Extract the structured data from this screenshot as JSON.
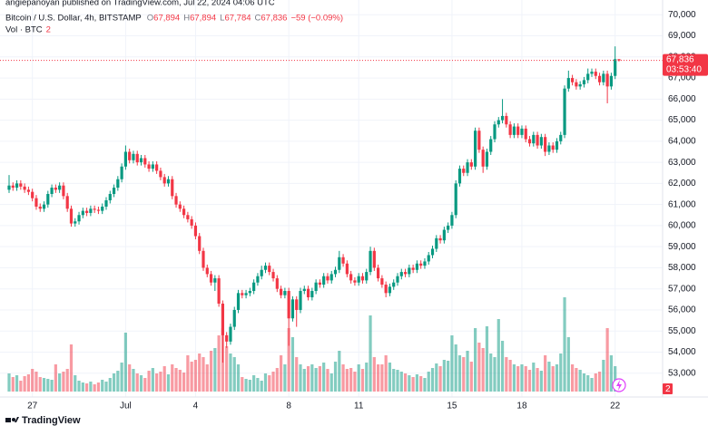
{
  "published": "angiepanoyan published on TradingView.com, Jul 22, 2024 04:06 UTC",
  "logo": "TradingView",
  "legend": {
    "symbol": "Bitcoin / U.S. Dollar, 4h, BITSTAMP",
    "ohlc": [
      {
        "key": "O",
        "value": "67,894"
      },
      {
        "key": "H",
        "value": "67,894"
      },
      {
        "key": "L",
        "value": "67,784"
      },
      {
        "key": "C",
        "value": "67,836"
      }
    ],
    "change": "−59 (−0.09%)",
    "volume_title": "Vol · BTC",
    "volume_value": "2"
  },
  "chart_data": {
    "type": "candlestick",
    "up_color": "#089981",
    "down_color": "#f23645",
    "ylim": [
      52000,
      70700
    ],
    "yticks": [
      {
        "value": 53000,
        "label": "53,000"
      },
      {
        "value": 54000,
        "label": "54,000"
      },
      {
        "value": 55000,
        "label": "55,000"
      },
      {
        "value": 56000,
        "label": "56,000"
      },
      {
        "value": 57000,
        "label": "57,000"
      },
      {
        "value": 58000,
        "label": "58,000"
      },
      {
        "value": 59000,
        "label": "59,000"
      },
      {
        "value": 60000,
        "label": "60,000"
      },
      {
        "value": 61000,
        "label": "61,000"
      },
      {
        "value": 62000,
        "label": "62,000"
      },
      {
        "value": 63000,
        "label": "63,000"
      },
      {
        "value": 64000,
        "label": "64,000"
      },
      {
        "value": 65000,
        "label": "65,000"
      },
      {
        "value": 66000,
        "label": "66,000"
      },
      {
        "value": 67000,
        "label": "67,000"
      },
      {
        "value": 68000,
        "label": "68,000"
      },
      {
        "value": 69000,
        "label": "69,000"
      },
      {
        "value": 70000,
        "label": "70,000"
      }
    ],
    "grid": true,
    "last_price": {
      "value": 67836,
      "label": "67,836"
    },
    "countdown": "03:53:40",
    "categories": [
      null,
      null,
      null,
      null,
      null,
      null,
      "27",
      null,
      null,
      null,
      null,
      null,
      null,
      null,
      null,
      null,
      null,
      null,
      null,
      null,
      null,
      null,
      null,
      null,
      null,
      null,
      null,
      null,
      null,
      null,
      "Jul",
      null,
      null,
      null,
      null,
      null,
      null,
      null,
      null,
      null,
      null,
      null,
      null,
      null,
      null,
      null,
      null,
      null,
      "4",
      null,
      null,
      null,
      null,
      null,
      null,
      null,
      null,
      null,
      null,
      null,
      null,
      null,
      null,
      null,
      null,
      null,
      null,
      null,
      null,
      null,
      null,
      null,
      "8",
      null,
      null,
      null,
      null,
      null,
      null,
      null,
      null,
      null,
      null,
      null,
      null,
      null,
      null,
      null,
      null,
      null,
      "11",
      null,
      null,
      null,
      null,
      null,
      null,
      null,
      null,
      null,
      null,
      null,
      null,
      null,
      null,
      null,
      null,
      null,
      null,
      null,
      null,
      null,
      null,
      null,
      "15",
      null,
      null,
      null,
      null,
      null,
      null,
      null,
      null,
      null,
      null,
      null,
      null,
      null,
      null,
      null,
      null,
      null,
      "18",
      null,
      null,
      null,
      null,
      null,
      null,
      null,
      null,
      null,
      null,
      null,
      null,
      null,
      null,
      null,
      null,
      null,
      null,
      null,
      null,
      null,
      null,
      null,
      "22",
      null
    ],
    "open": [
      61700,
      61900,
      61800,
      62000,
      61850,
      61700,
      61600,
      61300,
      60900,
      60800,
      61000,
      61500,
      61800,
      61700,
      61900,
      61400,
      60800,
      60100,
      60200,
      60500,
      60700,
      60600,
      60800,
      60750,
      60700,
      60900,
      61200,
      61500,
      61800,
      62200,
      62800,
      63500,
      63100,
      63400,
      63000,
      63200,
      62900,
      62700,
      62900,
      62600,
      62300,
      62000,
      62200,
      61400,
      61000,
      60800,
      60500,
      60300,
      60000,
      59500,
      58800,
      58000,
      57700,
      57300,
      57500,
      56300,
      54800,
      54500,
      55200,
      56000,
      56800,
      56700,
      56800,
      56900,
      57300,
      57600,
      57900,
      58100,
      57800,
      57500,
      57000,
      56700,
      56900,
      55600,
      56500,
      56000,
      56900,
      57000,
      56600,
      56900,
      57300,
      57200,
      57600,
      57400,
      57700,
      57900,
      58500,
      58200,
      57700,
      57400,
      57300,
      57600,
      57400,
      57800,
      58800,
      58000,
      57500,
      57200,
      56800,
      57100,
      57300,
      57600,
      57800,
      57700,
      58000,
      57900,
      58200,
      58100,
      58300,
      58600,
      58900,
      59400,
      59300,
      59800,
      60000,
      60500,
      62000,
      62700,
      62500,
      63000,
      62800,
      64500,
      63600,
      62800,
      63500,
      64100,
      64800,
      65000,
      65200,
      64800,
      64300,
      64700,
      64300,
      64600,
      64100,
      63900,
      64300,
      63800,
      64200,
      63500,
      63800,
      63600,
      64000,
      64300,
      66500,
      67000,
      66800,
      66600,
      66700,
      66900,
      67200,
      67300,
      67100,
      66800,
      67200,
      66600,
      67100,
      67894
    ],
    "high": [
      62400,
      62050,
      62150,
      62150,
      62000,
      61850,
      61750,
      61450,
      61050,
      61150,
      61650,
      61950,
      61950,
      62050,
      62050,
      61550,
      60950,
      60350,
      60650,
      60850,
      60850,
      60950,
      60950,
      60900,
      61050,
      61350,
      61650,
      61950,
      62350,
      62950,
      63800,
      63650,
      63550,
      63550,
      63350,
      63350,
      63050,
      63050,
      63050,
      62750,
      62450,
      62350,
      62350,
      61550,
      61150,
      60950,
      60650,
      60450,
      60150,
      59650,
      58950,
      58150,
      57850,
      57650,
      57650,
      56450,
      54950,
      55350,
      56150,
      56950,
      56950,
      56950,
      57050,
      57450,
      57750,
      58100,
      58250,
      58250,
      57950,
      57650,
      57150,
      57050,
      57050,
      56650,
      56650,
      57050,
      57150,
      57150,
      57050,
      57450,
      57450,
      57750,
      57750,
      57850,
      58050,
      58800,
      58650,
      58350,
      57850,
      57550,
      57750,
      57750,
      57950,
      59000,
      58950,
      58150,
      57650,
      57350,
      57250,
      57450,
      57750,
      57950,
      57950,
      58150,
      58150,
      58350,
      58350,
      58450,
      58750,
      59050,
      59550,
      59550,
      59950,
      60150,
      60650,
      62150,
      62850,
      62850,
      63150,
      63150,
      64650,
      64650,
      63750,
      63650,
      64250,
      64950,
      65150,
      66000,
      65350,
      64950,
      64850,
      64850,
      64750,
      64750,
      64250,
      64450,
      64450,
      64350,
      64350,
      63950,
      63950,
      64150,
      64450,
      66650,
      67350,
      67150,
      66950,
      66850,
      67050,
      67450,
      67450,
      67450,
      67250,
      67350,
      67350,
      67250,
      68500,
      67894
    ],
    "low": [
      61550,
      61650,
      61650,
      61700,
      61550,
      61450,
      61150,
      60750,
      60650,
      60650,
      60850,
      61350,
      61550,
      61550,
      61250,
      60650,
      59950,
      59950,
      60050,
      60350,
      60450,
      60450,
      60600,
      60550,
      60550,
      60750,
      61050,
      61350,
      61650,
      62050,
      62650,
      62950,
      62950,
      62850,
      62850,
      62750,
      62550,
      62550,
      62450,
      62150,
      61850,
      61850,
      61250,
      60850,
      60650,
      60350,
      60150,
      59850,
      59350,
      58650,
      57850,
      57550,
      57150,
      56900,
      56150,
      53500,
      54200,
      54350,
      55050,
      55850,
      56550,
      56550,
      56650,
      56750,
      57150,
      57450,
      57750,
      57650,
      57350,
      56850,
      56550,
      56550,
      54300,
      55450,
      55200,
      55850,
      56750,
      56450,
      56450,
      56750,
      57050,
      57050,
      57250,
      57250,
      57550,
      57750,
      58050,
      57550,
      57250,
      57150,
      57150,
      57250,
      57250,
      57650,
      57850,
      57350,
      57050,
      56600,
      56650,
      56950,
      57150,
      57450,
      57550,
      57550,
      57750,
      57750,
      57950,
      57950,
      58150,
      58450,
      58750,
      59150,
      59150,
      59650,
      59850,
      60350,
      61850,
      62350,
      62350,
      62650,
      62650,
      63450,
      62500,
      62650,
      63350,
      63950,
      64650,
      64850,
      64650,
      64150,
      64150,
      64150,
      64150,
      63950,
      63750,
      63750,
      63650,
      63650,
      63300,
      63350,
      63450,
      63450,
      63850,
      64150,
      66350,
      66650,
      66450,
      66450,
      66550,
      66750,
      67050,
      66950,
      66650,
      66650,
      65800,
      66450,
      66950,
      67784
    ],
    "close": [
      61900,
      61800,
      62000,
      61850,
      61700,
      61600,
      61300,
      60900,
      60800,
      61000,
      61500,
      61800,
      61700,
      61900,
      61400,
      60800,
      60100,
      60200,
      60500,
      60700,
      60600,
      60800,
      60750,
      60700,
      60900,
      61200,
      61500,
      61800,
      62200,
      62800,
      63500,
      63100,
      63400,
      63000,
      63200,
      62900,
      62700,
      62900,
      62600,
      62300,
      62000,
      62200,
      61400,
      61000,
      60800,
      60500,
      60300,
      60000,
      59500,
      58800,
      58000,
      57700,
      57300,
      57500,
      56300,
      54800,
      54500,
      55200,
      56000,
      56800,
      56700,
      56800,
      56900,
      57300,
      57600,
      57900,
      58100,
      57800,
      57500,
      57000,
      56700,
      56900,
      55600,
      56500,
      56000,
      56900,
      57000,
      56600,
      56900,
      57300,
      57200,
      57600,
      57400,
      57700,
      57900,
      58500,
      58200,
      57700,
      57400,
      57300,
      57600,
      57400,
      57800,
      58800,
      58000,
      57500,
      57200,
      56800,
      57100,
      57300,
      57600,
      57800,
      57700,
      58000,
      57900,
      58200,
      58100,
      58300,
      58600,
      58900,
      59400,
      59300,
      59800,
      60000,
      60500,
      62000,
      62700,
      62500,
      63000,
      62800,
      64500,
      63600,
      62800,
      63500,
      64100,
      64800,
      65000,
      65200,
      64800,
      64300,
      64700,
      64300,
      64600,
      64100,
      63900,
      64300,
      63800,
      64200,
      63500,
      63800,
      63600,
      64000,
      64300,
      66500,
      67000,
      66800,
      66600,
      66700,
      66900,
      67200,
      67300,
      67100,
      66800,
      67200,
      66600,
      67100,
      67894,
      67836
    ],
    "volume": [
      200,
      160,
      180,
      120,
      170,
      190,
      250,
      220,
      160,
      150,
      140,
      130,
      300,
      200,
      220,
      250,
      520,
      180,
      120,
      100,
      90,
      110,
      80,
      100,
      130,
      110,
      150,
      200,
      230,
      320,
      650,
      300,
      250,
      200,
      180,
      150,
      230,
      260,
      200,
      220,
      280,
      190,
      300,
      260,
      240,
      210,
      400,
      330,
      350,
      420,
      380,
      300,
      450,
      480,
      620,
      700,
      500,
      420,
      380,
      300,
      160,
      140,
      130,
      180,
      150,
      120,
      200,
      180,
      220,
      260,
      400,
      300,
      700,
      600,
      380,
      300,
      250,
      280,
      300,
      260,
      280,
      320,
      250,
      200,
      330,
      450,
      300,
      250,
      260,
      220,
      300,
      250,
      320,
      840,
      380,
      300,
      300,
      400,
      320,
      250,
      240,
      220,
      200,
      180,
      160,
      190,
      170,
      150,
      220,
      260,
      310,
      280,
      350,
      340,
      620,
      520,
      400,
      380,
      450,
      330,
      700,
      540,
      480,
      720,
      420,
      380,
      800,
      560,
      380,
      350,
      300,
      280,
      300,
      280,
      240,
      320,
      260,
      230,
      400,
      330,
      280,
      300,
      420,
      1040,
      600,
      300,
      260,
      240,
      200,
      180,
      150,
      200,
      220,
      350,
      700,
      400,
      280,
      2
    ]
  }
}
